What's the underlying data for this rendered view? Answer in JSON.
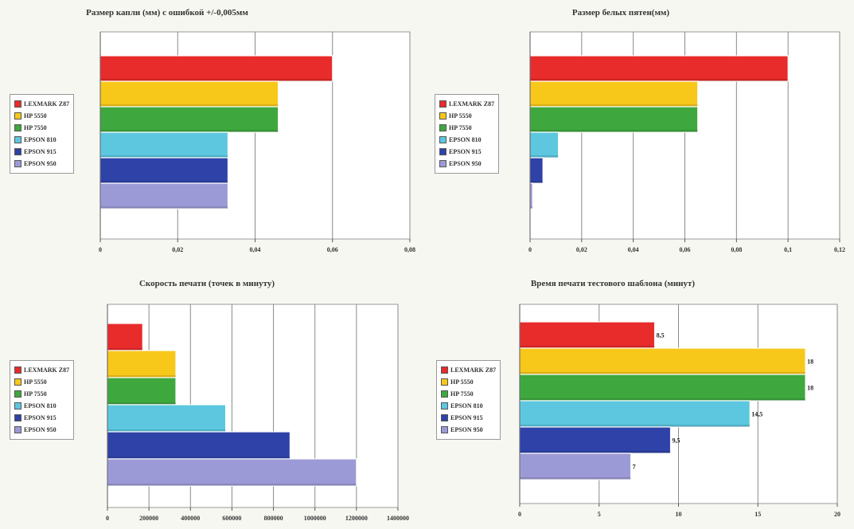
{
  "series": [
    {
      "name": "LEXMARK Z87",
      "color": "#e82b2b"
    },
    {
      "name": "HP 5550",
      "color": "#f7c81a"
    },
    {
      "name": "HP 7550",
      "color": "#3ea83e"
    },
    {
      "name": "EPSON 810",
      "color": "#5cc7df"
    },
    {
      "name": "EPSON 915",
      "color": "#2e42a8"
    },
    {
      "name": "EPSON 950",
      "color": "#9c9ad6"
    }
  ],
  "chart_data": [
    {
      "type": "bar",
      "orientation": "horizontal",
      "title": "Размер капли (мм) с ошибкой +/-0,005мм",
      "categories": [
        "LEXMARK Z87",
        "HP 5550",
        "HP 7550",
        "EPSON 810",
        "EPSON 915",
        "EPSON 950"
      ],
      "values": [
        0.06,
        0.046,
        0.046,
        0.033,
        0.033,
        0.033
      ],
      "xlim": [
        0,
        0.08
      ],
      "ticks": [
        0,
        0.02,
        0.04,
        0.06,
        0.08
      ],
      "tick_labels": [
        "0",
        "0,02",
        "0,04",
        "0,06",
        "0,08"
      ],
      "data_labels": [],
      "legend_position": "left",
      "grid": true
    },
    {
      "type": "bar",
      "orientation": "horizontal",
      "title": "Размер белых пятен(мм)",
      "categories": [
        "LEXMARK Z87",
        "HP 5550",
        "HP 7550",
        "EPSON 810",
        "EPSON 915",
        "EPSON 950"
      ],
      "values": [
        0.1,
        0.065,
        0.065,
        0.011,
        0.005,
        0.001
      ],
      "xlim": [
        0,
        0.12
      ],
      "ticks": [
        0,
        0.02,
        0.04,
        0.06,
        0.08,
        0.1,
        0.12
      ],
      "tick_labels": [
        "0",
        "0,02",
        "0,04",
        "0,06",
        "0,08",
        "0,1",
        "0,12"
      ],
      "data_labels": [],
      "legend_position": "left",
      "grid": true
    },
    {
      "type": "bar",
      "orientation": "horizontal",
      "title": "Скорость печати (точек в минуту)",
      "categories": [
        "LEXMARK Z87",
        "HP 5550",
        "HP 7550",
        "EPSON 810",
        "EPSON 915",
        "EPSON 950"
      ],
      "values": [
        170000,
        330000,
        330000,
        570000,
        880000,
        1200000
      ],
      "xlim": [
        0,
        1400000
      ],
      "ticks": [
        0,
        200000,
        400000,
        600000,
        800000,
        1000000,
        1200000,
        1400000
      ],
      "tick_labels": [
        "0",
        "200000",
        "400000",
        "600000",
        "800000",
        "1000000",
        "1200000",
        "1400000"
      ],
      "data_labels": [],
      "legend_position": "left",
      "grid": true
    },
    {
      "type": "bar",
      "orientation": "horizontal",
      "title": "Время печати тестового шаблона (минут)",
      "categories": [
        "LEXMARK Z87",
        "HP 5550",
        "HP 7550",
        "EPSON 810",
        "EPSON 915",
        "EPSON 950"
      ],
      "values": [
        8.5,
        18,
        18,
        14.5,
        9.5,
        7
      ],
      "xlim": [
        0,
        20
      ],
      "ticks": [
        0,
        5,
        10,
        15,
        20
      ],
      "tick_labels": [
        "0",
        "5",
        "10",
        "15",
        "20"
      ],
      "data_labels": [
        "8,5",
        "18",
        "18",
        "14,5",
        "9,5",
        "7"
      ],
      "legend_position": "left",
      "grid": true
    }
  ]
}
